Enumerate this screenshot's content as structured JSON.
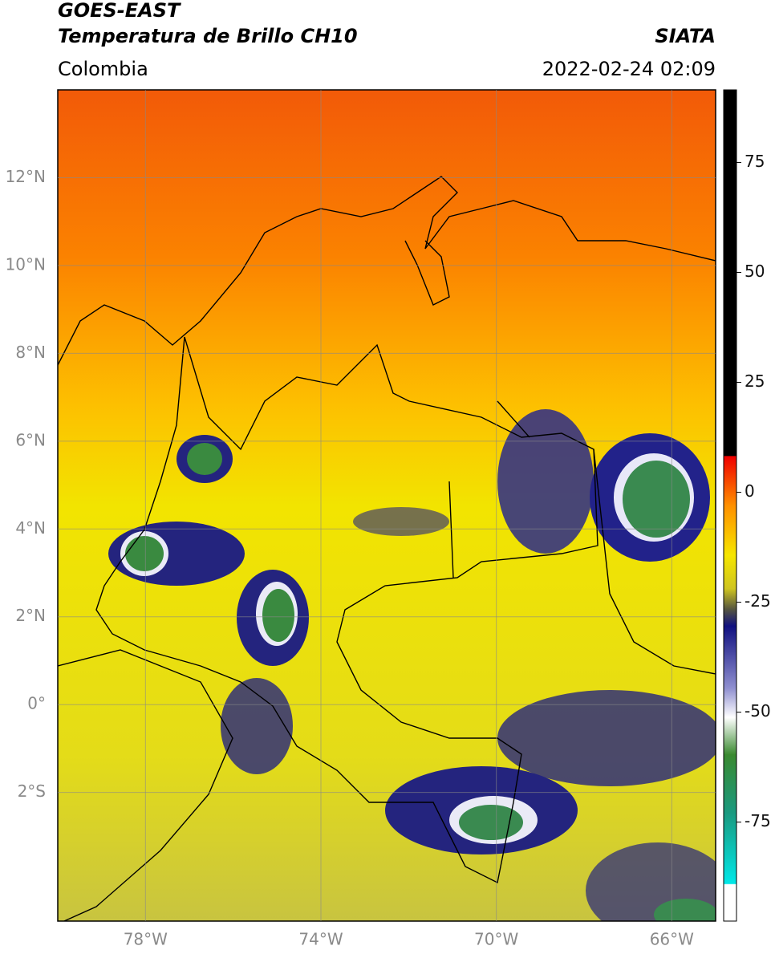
{
  "header": {
    "title": "GOES-EAST",
    "subtitle": "Temperatura de Brillo CH10",
    "source": "SIATA",
    "region": "Colombia",
    "datetime": "2022-02-24 02:09"
  },
  "map": {
    "xlim": [
      -80,
      -65
    ],
    "ylim": [
      -4.93,
      14
    ],
    "xticks": [
      {
        "value": -78,
        "label": "78°W"
      },
      {
        "value": -74,
        "label": "74°W"
      },
      {
        "value": -70,
        "label": "70°W"
      },
      {
        "value": -66,
        "label": "66°W"
      }
    ],
    "yticks": [
      {
        "value": 12,
        "label": "12°N"
      },
      {
        "value": 10,
        "label": "10°N"
      },
      {
        "value": 8,
        "label": "8°N"
      },
      {
        "value": 6,
        "label": "6°N"
      },
      {
        "value": 4,
        "label": "4°N"
      },
      {
        "value": 2,
        "label": "2°N"
      },
      {
        "value": 0,
        "label": "0°"
      },
      {
        "value": -2,
        "label": "2°S"
      }
    ],
    "grid": true
  },
  "colorbar": {
    "lim": [
      -97.5,
      91.5
    ],
    "ticks": [
      75,
      50,
      25,
      0,
      -25,
      -50,
      -75
    ]
  }
}
